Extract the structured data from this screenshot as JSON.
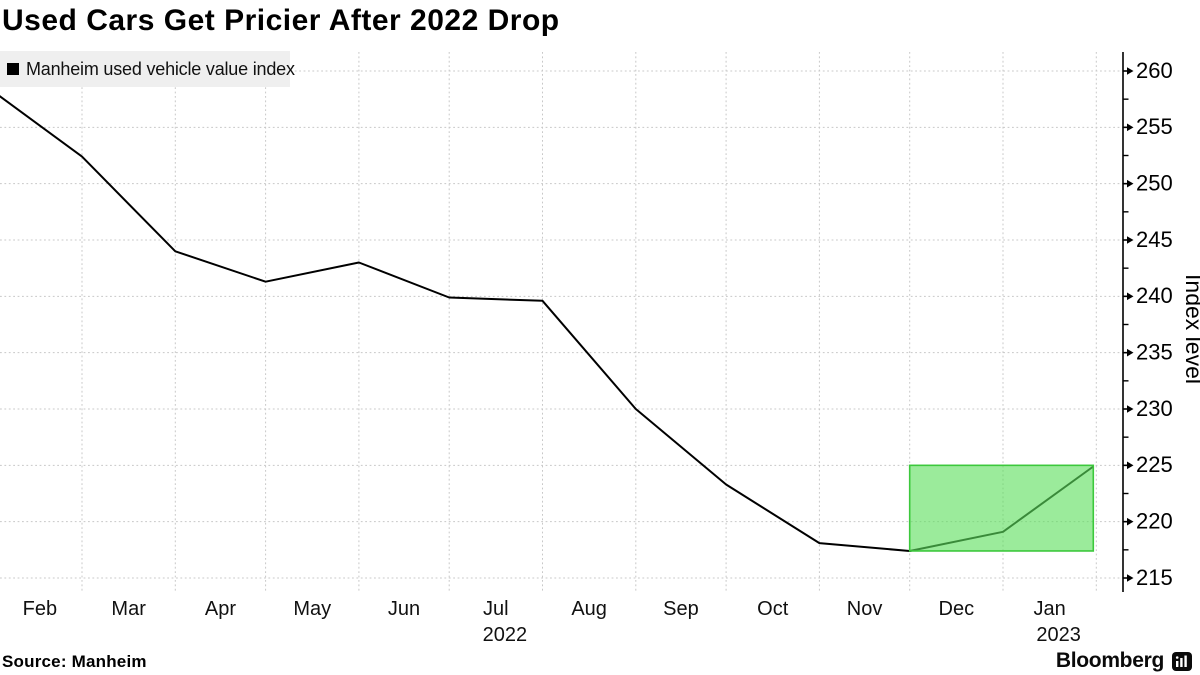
{
  "header": {
    "title": "Used Cars Get Pricier After 2022 Drop"
  },
  "legend": {
    "label": "Manheim used vehicle value index",
    "swatch_color": "#000000",
    "bg_color": "#efefef"
  },
  "footer": {
    "source": "Source: Manheim",
    "brand": "Bloomberg"
  },
  "colors": {
    "line": "#000000",
    "grid": "#c8c8c8",
    "highlight_fill": "#5ede5e",
    "highlight_border": "#3cc83c",
    "axis": "#000000"
  },
  "chart_data": {
    "type": "line",
    "title": "Used Cars Get Pricier After 2022 Drop",
    "legend": [
      "Manheim used vehicle value index"
    ],
    "legend_position": "top-left",
    "xlabel": "",
    "ylabel": "Index level",
    "ylim": [
      215,
      260
    ],
    "ytick_step": 5,
    "ytick_minor_step": 2.5,
    "yticks": [
      215,
      220,
      225,
      230,
      235,
      240,
      245,
      250,
      255,
      260
    ],
    "grid": "dotted, at every month boundary and every 5 index points",
    "x_axis": {
      "months": [
        {
          "label": "Feb",
          "year_line": ""
        },
        {
          "label": "Mar",
          "year_line": ""
        },
        {
          "label": "Apr",
          "year_line": ""
        },
        {
          "label": "May",
          "year_line": ""
        },
        {
          "label": "Jun",
          "year_line": ""
        },
        {
          "label": "Jul",
          "year_line": "2022"
        },
        {
          "label": "Aug",
          "year_line": ""
        },
        {
          "label": "Sep",
          "year_line": ""
        },
        {
          "label": "Oct",
          "year_line": ""
        },
        {
          "label": "Nov",
          "year_line": ""
        },
        {
          "label": "Dec",
          "year_line": ""
        },
        {
          "label": "Jan",
          "year_line": "2023"
        }
      ]
    },
    "series": [
      {
        "name": "Manheim used vehicle value index",
        "color": "#000000",
        "points": [
          {
            "date": "2022-02-01",
            "value": 257.9
          },
          {
            "date": "2022-03-01",
            "value": 252.4
          },
          {
            "date": "2022-04-01",
            "value": 244.0
          },
          {
            "date": "2022-05-01",
            "value": 241.3
          },
          {
            "date": "2022-06-01",
            "value": 243.0
          },
          {
            "date": "2022-07-01",
            "value": 239.9
          },
          {
            "date": "2022-08-01",
            "value": 239.6
          },
          {
            "date": "2022-09-01",
            "value": 230.0
          },
          {
            "date": "2022-10-01",
            "value": 223.3
          },
          {
            "date": "2022-11-01",
            "value": 218.1
          },
          {
            "date": "2022-12-01",
            "value": 217.4
          },
          {
            "date": "2023-01-01",
            "value": 219.1
          },
          {
            "date": "2023-01-31",
            "value": 224.9
          }
        ]
      }
    ],
    "highlight_box": {
      "from": "2022-12-01",
      "to": "2023-01-31",
      "bottom": 217.4,
      "top": 225.0,
      "fill": "#5ede5e",
      "fill_opacity": 0.62,
      "border": "#3cc83c"
    }
  }
}
